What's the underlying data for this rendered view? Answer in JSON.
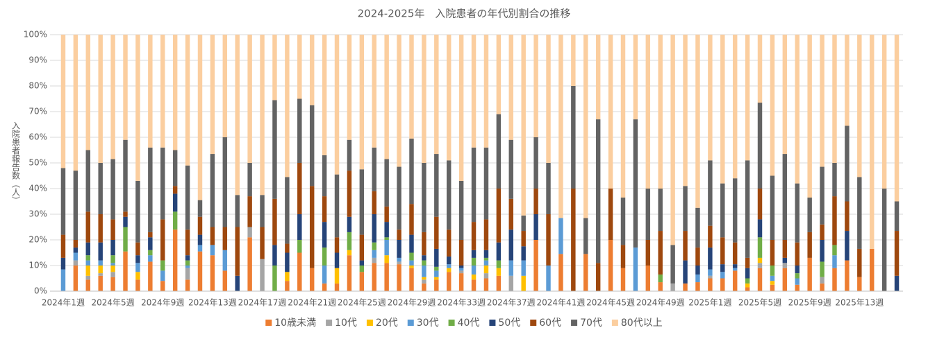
{
  "chart_data": {
    "type": "stacked_bar_100",
    "title": "2024-2025年　入院患者の年代別割合の推移",
    "y_label": "入院患者報告数（人）",
    "categories": [
      "2024年1週",
      null,
      null,
      null,
      "2024年5週",
      null,
      null,
      null,
      "2024年9週",
      null,
      null,
      null,
      "2024年13週",
      null,
      null,
      null,
      "2024年17週",
      null,
      null,
      null,
      "2024年21週",
      null,
      null,
      null,
      "2024年25週",
      null,
      null,
      null,
      "2024年29週",
      null,
      null,
      null,
      "2024年33週",
      null,
      null,
      null,
      "2024年37週",
      null,
      null,
      null,
      "2024年41週",
      null,
      null,
      null,
      "2024年45週",
      null,
      null,
      null,
      "2024年49週",
      null,
      null,
      null,
      "2025年1週",
      null,
      null,
      null,
      "2025年5週",
      null,
      null,
      null,
      "2025年9週",
      null,
      null,
      null,
      "2025年13週",
      null,
      null,
      null
    ],
    "ylim": [
      0,
      100
    ],
    "yticks": [
      {
        "value": 0,
        "label": "0%"
      },
      {
        "value": 10,
        "label": "10%"
      },
      {
        "value": 20,
        "label": "20%"
      },
      {
        "value": 30,
        "label": "30%"
      },
      {
        "value": 40,
        "label": "40%"
      },
      {
        "value": 50,
        "label": "50%"
      },
      {
        "value": 60,
        "label": "60%"
      },
      {
        "value": 70,
        "label": "70%"
      },
      {
        "value": 80,
        "label": "80%"
      },
      {
        "value": 90,
        "label": "90%"
      },
      {
        "value": 100,
        "label": "100%"
      }
    ],
    "grid": true,
    "legend": "bottom",
    "series": [
      {
        "name": "10歳未満",
        "color": "#ED7D31",
        "values": [
          0,
          10,
          4.5,
          6,
          5.5,
          15.5,
          4.5,
          11.5,
          4,
          24,
          4.5,
          15.5,
          14,
          8,
          0,
          21,
          0,
          0,
          4,
          15,
          9,
          3,
          3,
          14,
          7.5,
          11,
          11,
          10.5,
          9,
          3,
          4.5,
          7.5,
          7,
          4.5,
          5,
          6,
          0,
          0,
          20,
          0,
          14.5,
          0,
          14.5,
          0,
          20,
          9,
          0,
          10,
          3.5,
          0,
          3,
          3.5,
          5,
          5,
          8,
          1.5,
          9,
          2.5,
          9,
          2.5,
          13,
          3,
          9,
          12,
          5.5,
          16.5,
          0,
          0
        ]
      },
      {
        "name": "10代",
        "color": "#A5A5A5",
        "values": [
          0,
          2,
          1.5,
          1,
          2,
          0,
          0,
          0,
          0,
          0,
          4.5,
          0,
          0,
          0,
          0,
          4,
          12.5,
          0,
          0,
          0,
          0,
          0,
          0,
          0,
          0,
          2,
          0,
          1,
          0,
          1.5,
          0,
          0,
          1,
          0,
          2,
          0,
          6,
          0,
          0,
          0,
          0,
          0,
          0,
          0,
          0,
          0,
          0,
          0,
          0,
          3,
          0,
          0,
          1,
          0,
          0,
          0,
          2,
          0,
          2,
          0,
          0,
          2.5,
          0,
          0,
          0,
          0,
          0,
          0
        ]
      },
      {
        "name": "20代",
        "color": "#FFC000",
        "values": [
          0,
          0,
          4,
          3,
          2.5,
          0,
          3,
          0,
          0,
          0,
          0,
          0,
          0,
          0,
          0,
          0,
          0,
          0,
          3.5,
          0,
          0,
          0,
          6,
          2,
          0,
          0,
          3,
          0,
          1,
          1,
          1,
          1.5,
          0,
          2,
          3,
          3,
          0,
          6,
          0,
          0,
          0,
          0,
          0,
          0,
          0,
          0,
          0,
          0,
          0,
          0,
          0,
          0,
          0,
          0,
          0,
          1.5,
          2,
          1.5,
          0,
          0,
          0,
          0,
          0,
          0,
          0,
          0,
          0,
          0
        ]
      },
      {
        "name": "30代",
        "color": "#5B9BD5",
        "values": [
          8.5,
          3,
          2,
          2,
          1,
          0,
          3.5,
          2.5,
          4,
          0,
          1,
          2.5,
          4,
          8,
          0,
          0,
          0,
          0,
          0,
          0,
          0,
          7,
          0,
          0,
          0,
          3,
          6,
          1.5,
          2,
          4.5,
          2.5,
          1.5,
          1,
          3.5,
          2,
          0,
          6,
          6,
          0,
          10,
          14,
          0,
          0,
          0,
          0,
          0,
          17,
          0,
          0,
          0,
          0,
          3,
          2.5,
          2.5,
          1,
          0,
          0,
          2,
          0,
          2.5,
          0,
          0,
          5,
          0,
          0,
          0,
          0,
          0
        ]
      },
      {
        "name": "40代",
        "color": "#70AD47",
        "values": [
          0,
          0,
          2,
          0,
          3,
          9.5,
          0,
          2,
          4,
          7,
          2,
          0,
          0,
          0,
          0,
          0,
          0,
          10,
          0,
          5,
          0,
          7,
          0,
          7,
          2.5,
          3,
          1,
          0,
          3,
          2,
          1.5,
          0,
          0,
          3,
          1,
          3,
          0,
          0,
          0,
          0,
          0,
          0,
          0,
          0,
          0,
          0,
          0,
          0,
          3,
          0,
          0,
          0,
          0,
          0,
          0,
          2,
          8,
          4,
          0,
          2,
          0,
          6,
          4,
          0,
          0,
          0,
          0,
          0
        ]
      },
      {
        "name": "50代",
        "color": "#264478",
        "values": [
          4.5,
          2,
          5,
          7,
          6,
          4,
          3,
          5,
          0,
          7,
          2,
          4,
          0,
          0,
          6,
          0,
          0,
          8,
          7.5,
          10,
          0,
          10,
          6,
          6,
          2,
          11,
          6,
          7,
          7,
          2,
          7,
          3,
          1,
          3,
          3,
          7,
          12,
          5.5,
          10,
          0,
          0,
          0,
          0,
          0,
          0,
          0,
          0,
          0,
          0,
          0,
          9,
          3.5,
          8.5,
          3,
          1.5,
          4,
          7,
          0,
          2,
          3,
          0,
          8.5,
          0,
          11.5,
          0,
          0,
          0,
          6
        ]
      },
      {
        "name": "60代",
        "color": "#9E480E",
        "values": [
          9,
          3,
          12,
          11,
          8,
          2,
          5,
          2,
          16,
          3,
          10,
          7,
          7,
          9,
          19,
          12,
          12.5,
          18,
          3.5,
          20,
          32,
          10,
          6,
          18,
          10,
          9,
          6,
          4,
          12,
          9,
          12.5,
          10.5,
          10,
          11,
          12,
          21,
          12,
          6,
          10,
          20,
          0,
          40,
          0,
          11,
          20,
          9,
          0,
          10,
          17,
          0,
          11.5,
          7,
          8.5,
          10.5,
          8.5,
          4,
          12,
          10,
          7,
          9,
          10,
          6,
          19,
          11.5,
          11,
          0,
          0,
          17.5
        ]
      },
      {
        "name": "70代",
        "color": "#636363",
        "values": [
          26,
          27,
          24,
          20,
          23.5,
          28,
          24,
          33,
          28,
          14,
          25,
          6.5,
          28.5,
          35,
          12.5,
          13,
          12.5,
          38.5,
          26,
          25,
          31.5,
          16,
          24.5,
          12,
          25.5,
          17,
          18.5,
          24.5,
          25.5,
          27,
          24.5,
          27,
          23,
          29,
          28,
          29,
          23,
          6,
          20,
          20,
          0,
          40,
          14,
          56,
          0,
          18.5,
          50,
          20,
          16.5,
          15,
          17.5,
          15.5,
          25.5,
          21,
          25,
          38,
          33.5,
          25,
          33.5,
          23,
          13.5,
          22.5,
          13,
          29.5,
          28,
          0,
          40,
          11.5
        ]
      },
      {
        "name": "80代以上",
        "color": "#FBCE9F",
        "values": [
          52,
          53,
          45,
          50,
          48.5,
          41,
          57,
          44,
          44,
          45,
          51,
          64.5,
          46.5,
          40,
          62.5,
          50,
          62.5,
          25.5,
          55.5,
          25,
          27.5,
          47,
          54.5,
          41,
          52.5,
          44,
          48.5,
          51.5,
          40.5,
          50,
          46.5,
          49,
          57,
          44,
          44,
          31,
          41,
          70.5,
          40,
          50,
          71.5,
          20,
          71.5,
          33,
          60,
          63.5,
          33,
          60,
          60,
          82,
          59,
          67.5,
          49,
          58,
          56,
          49,
          26.5,
          55,
          46.5,
          58,
          63.5,
          51.5,
          50,
          35.5,
          55.5,
          83.5,
          60,
          65
        ]
      }
    ]
  }
}
